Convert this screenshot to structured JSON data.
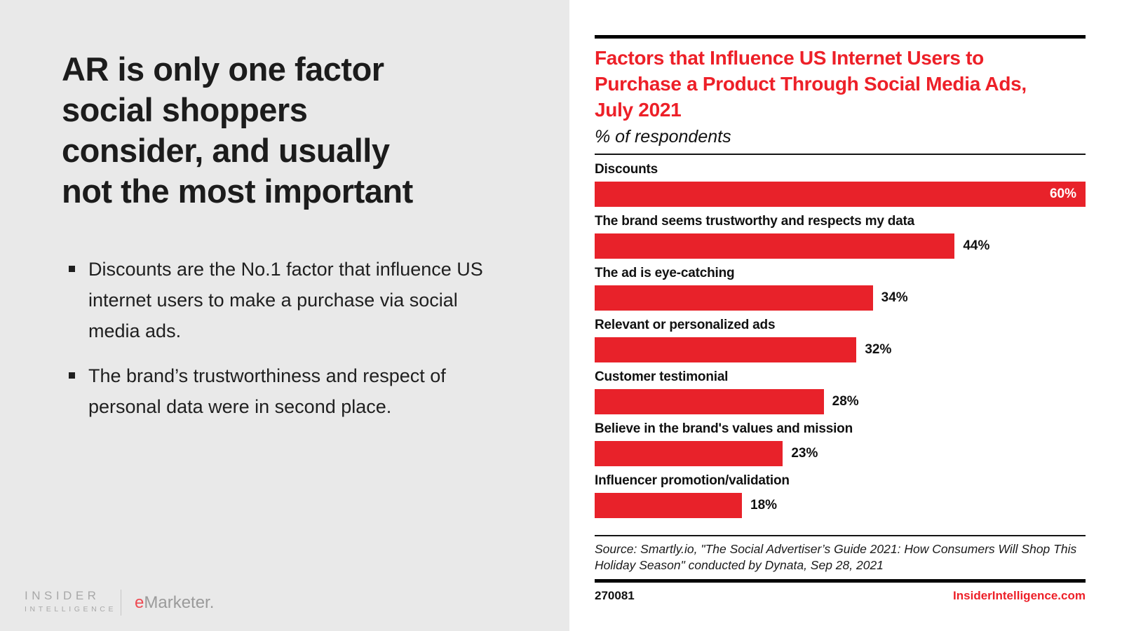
{
  "slide": {
    "headline_lines": [
      "AR is only one factor",
      "social shoppers",
      "consider, and usually",
      "not the most important"
    ],
    "bullets": [
      "Discounts are the No.1 factor that influence US internet users to make a purchase via social media ads.",
      "The brand’s trustworthiness and respect of personal data were in second place."
    ]
  },
  "brand": {
    "insider_line1": "INSIDER",
    "insider_line2": "INTELLIGENCE",
    "emarketer_e": "e",
    "emarketer_rest": "Marketer."
  },
  "chart": {
    "title_lines": [
      "Factors that Influence US Internet Users to",
      "Purchase a Product Through Social Media Ads,",
      "July 2021"
    ],
    "subtitle": "% of respondents",
    "source": "Source: Smartly.io, \"The Social Advertiser’s Guide 2021: How Consumers Will Shop This Holiday Season\" conducted by Dynata, Sep 28, 2021",
    "footer_id": "270081",
    "footer_site": "InsiderIntelligence.com"
  },
  "chart_data": {
    "type": "bar",
    "orientation": "horizontal",
    "title": "Factors that Influence US Internet Users to Purchase a Product Through Social Media Ads, July 2021",
    "subtitle": "% of respondents",
    "categories": [
      "Discounts",
      "The brand seems trustworthy and respects my data",
      "The ad is eye-catching",
      "Relevant or personalized ads",
      "Customer testimonial",
      "Believe in the brand's values and mission",
      "Influencer promotion/validation"
    ],
    "values": [
      60,
      44,
      34,
      32,
      28,
      23,
      18
    ],
    "unit": "%",
    "xlim": [
      0,
      60
    ],
    "grid": false,
    "legend": "none",
    "value_labels": [
      "60%",
      "44%",
      "34%",
      "32%",
      "28%",
      "23%",
      "18%"
    ]
  },
  "colors": {
    "bar_red": "#e8222a",
    "title_red": "#ed2028",
    "left_panel_bg": "#e9e9e9",
    "text_dark": "#1c1c1c",
    "logo_gray": "#a8a8a8",
    "emarketer_red": "#ee4b53"
  }
}
